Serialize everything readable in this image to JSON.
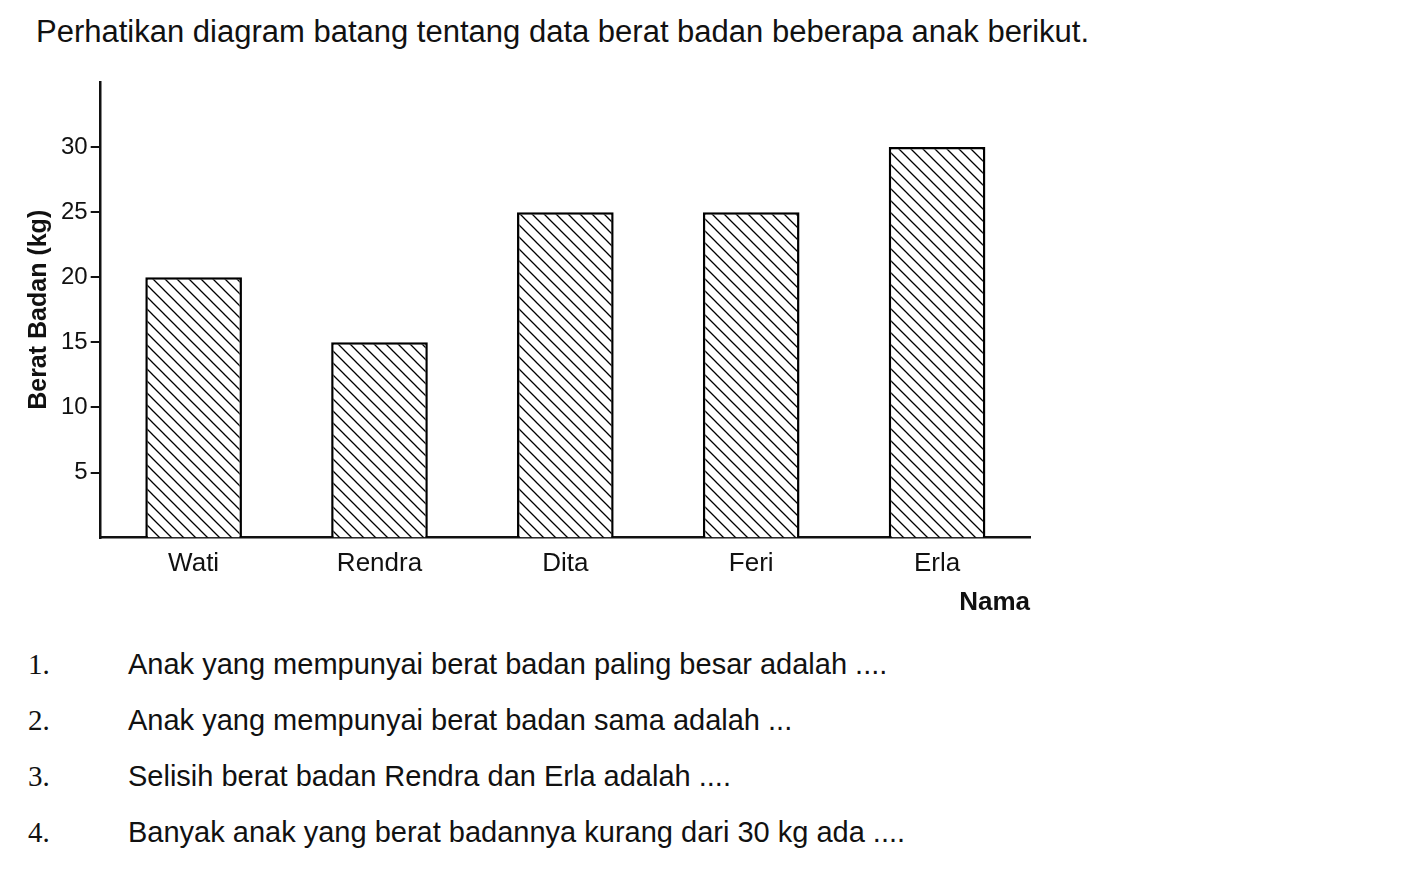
{
  "chart_data": {
    "type": "bar",
    "title": "Perhatikan diagram batang tentang data berat badan beberapa anak berikut.",
    "x_label": "Nama",
    "y_label": "Berat Badan (kg)",
    "categories": [
      "Wati",
      "Rendra",
      "Dita",
      "Feri",
      "Erla"
    ],
    "values": [
      20,
      15,
      25,
      25,
      30
    ],
    "color": "#000000",
    "ylim": [
      0,
      35
    ],
    "yticks": [
      5,
      10,
      15,
      20,
      25,
      30
    ],
    "grid": false
  },
  "questions": [
    {
      "number": "1.",
      "text": "Anak yang mempunyai berat badan paling besar adalah ...."
    },
    {
      "number": "2.",
      "text": "Anak yang mempunyai berat badan sama adalah ..."
    },
    {
      "number": "3.",
      "text": "Selisih berat badan Rendra dan Erla adalah ...."
    },
    {
      "number": "4.",
      "text": "Banyak anak yang berat badannya kurang dari 30 kg ada  ...."
    }
  ]
}
